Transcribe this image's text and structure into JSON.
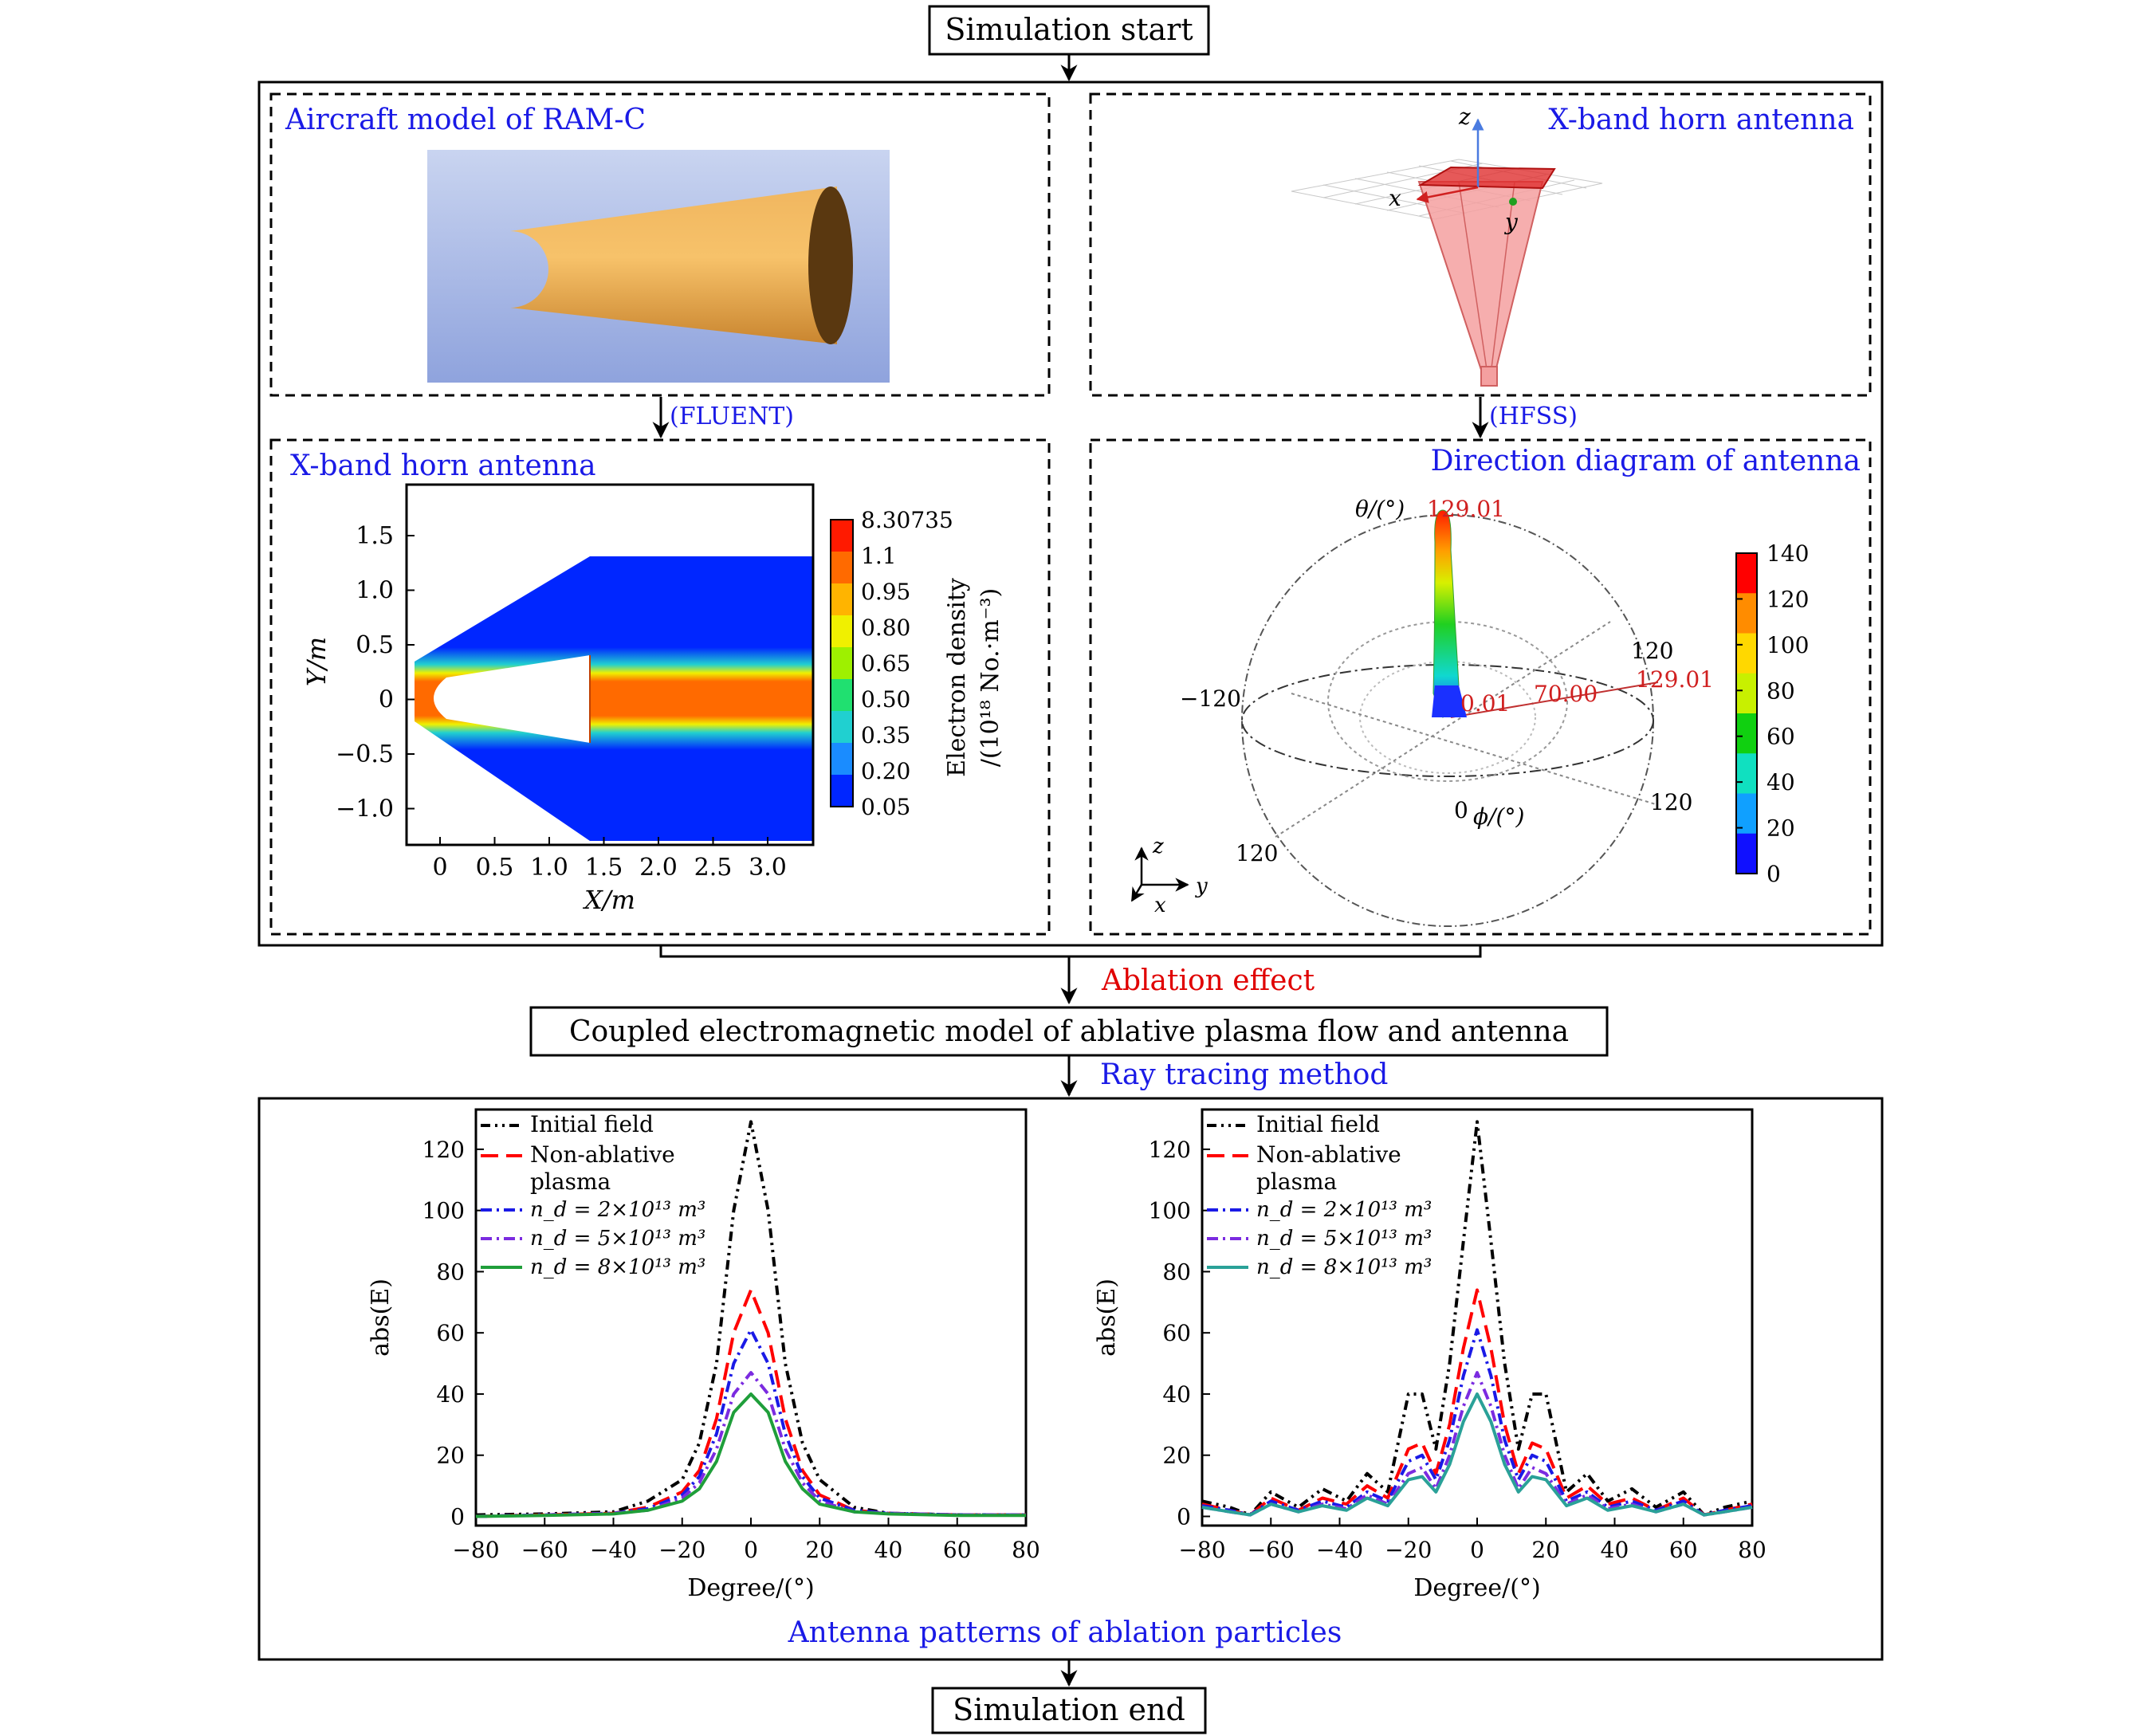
{
  "flow": {
    "start": "Simulation start",
    "end": "Simulation end",
    "ablation_effect": "Ablation effect",
    "coupled_model": "Coupled electromagnetic model of ablative plasma flow and antenna",
    "ray_tracing": "Ray tracing method",
    "fluent": "(FLUENT)",
    "hfss": "(HFSS)"
  },
  "panels": {
    "aircraft_title": "Aircraft model of RAM-C",
    "horn_title": "X-band horn antenna",
    "flow_title": "X-band horn antenna",
    "direction_title": "Direction diagram of antenna",
    "patterns_title": "Antenna patterns of ablation particles"
  },
  "horn_axes": {
    "x": "x",
    "y": "y",
    "z": "z"
  },
  "colors": {
    "blue_text": "#1a1ae6",
    "red_text": "#e00000",
    "black": "#000000",
    "initial": "#000000",
    "non_ablative": "#ff0000",
    "nd2": "#1a1ae6",
    "nd5": "#7b2be0",
    "nd8": "#1f9e3a",
    "nd8_right_alt": "#2aa198"
  },
  "flow_plot": {
    "xlabel": "X/m",
    "ylabel": "Y/m",
    "xticks": [
      "0",
      "0.5",
      "1.0",
      "1.5",
      "2.0",
      "2.5",
      "3.0"
    ],
    "yticks": [
      "1.5",
      "1.0",
      "0.5",
      "0",
      "−0.5",
      "−1.0"
    ],
    "colorbar_title_1": "Electron density",
    "colorbar_title_2": "/(10¹⁸ No.·m⁻³)",
    "colorbar_levels": [
      "8.30735",
      "1.1",
      "0.95",
      "0.80",
      "0.65",
      "0.50",
      "0.35",
      "0.20",
      "0.05"
    ],
    "colorbar_colors": [
      "#ff1a00",
      "#ff6a00",
      "#ffb400",
      "#f0f000",
      "#9ef000",
      "#20e070",
      "#20d0d0",
      "#1a8cff",
      "#0026ff"
    ]
  },
  "direction_plot": {
    "theta_label": "θ/(°)",
    "phi_label": "ϕ/(°)",
    "peak_label": "129.01",
    "right_label": "129.01",
    "mid_label": "70.00",
    "center_label": "0.01",
    "zero_label": "0",
    "left_label": "−120",
    "right_120": "120",
    "low_right_120": "120",
    "low_left_120": "120",
    "colorbar_ticks": [
      "140",
      "120",
      "100",
      "80",
      "60",
      "40",
      "20",
      "0"
    ],
    "colorbar_colors": [
      "#ff0000",
      "#ff8c00",
      "#ffd800",
      "#c8f000",
      "#10d010",
      "#10e0c0",
      "#10a0ff",
      "#1010ff"
    ]
  },
  "chart_data": [
    {
      "type": "line",
      "xlabel": "Degree/(°)",
      "ylabel": "abs(E)",
      "xlim": [
        -80,
        80
      ],
      "ylim": [
        -3,
        133
      ],
      "xticks": [
        "−80",
        "−60",
        "−40",
        "−20",
        "0",
        "20",
        "40",
        "60",
        "80"
      ],
      "yticks": [
        "0",
        "20",
        "40",
        "60",
        "80",
        "100",
        "120"
      ],
      "legend_position": "top-left",
      "series": [
        {
          "name": "Initial field",
          "x": [
            -80,
            -60,
            -40,
            -30,
            -20,
            -15,
            -10,
            -5,
            0,
            5,
            10,
            15,
            20,
            30,
            40,
            60,
            80
          ],
          "y": [
            0.5,
            0.8,
            1.5,
            5,
            12,
            24,
            50,
            100,
            129,
            100,
            50,
            24,
            12,
            3,
            1,
            0.5,
            0.5
          ]
        },
        {
          "name": "Non-ablative plasma",
          "x": [
            -80,
            -60,
            -40,
            -30,
            -20,
            -15,
            -10,
            -5,
            0,
            5,
            10,
            15,
            20,
            30,
            40,
            60,
            80
          ],
          "y": [
            0,
            0.5,
            1,
            3,
            8,
            15,
            32,
            60,
            74,
            60,
            32,
            15,
            7,
            2,
            1,
            0.5,
            0.5
          ]
        },
        {
          "name": "n_d = 2×10¹³ m³",
          "x": [
            -80,
            -60,
            -40,
            -30,
            -20,
            -15,
            -10,
            -5,
            0,
            5,
            10,
            15,
            20,
            30,
            40,
            60,
            80
          ],
          "y": [
            0,
            0.5,
            1,
            2.5,
            7,
            13,
            27,
            50,
            61,
            50,
            27,
            13,
            6,
            2,
            1,
            0.5,
            0.5
          ]
        },
        {
          "name": "n_d = 5×10¹³ m³",
          "x": [
            -80,
            -60,
            -40,
            -30,
            -20,
            -15,
            -10,
            -5,
            0,
            5,
            10,
            15,
            20,
            30,
            40,
            60,
            80
          ],
          "y": [
            0,
            0.5,
            1,
            2,
            6,
            11,
            22,
            40,
            47,
            40,
            22,
            11,
            5,
            1.5,
            1,
            0.5,
            0.5
          ]
        },
        {
          "name": "n_d = 8×10¹³ m³",
          "x": [
            -80,
            -60,
            -40,
            -30,
            -20,
            -15,
            -10,
            -5,
            0,
            5,
            10,
            15,
            20,
            30,
            40,
            60,
            80
          ],
          "y": [
            0,
            0.3,
            0.8,
            2,
            5,
            9,
            18,
            34,
            40,
            34,
            18,
            9,
            4,
            1.5,
            0.8,
            0.3,
            0.3
          ]
        }
      ]
    },
    {
      "type": "line",
      "xlabel": "Degree/(°)",
      "ylabel": "abs(E)",
      "xlim": [
        -80,
        80
      ],
      "ylim": [
        -3,
        133
      ],
      "xticks": [
        "−80",
        "−60",
        "−40",
        "−20",
        "0",
        "20",
        "40",
        "60",
        "80"
      ],
      "yticks": [
        "0",
        "20",
        "40",
        "60",
        "80",
        "100",
        "120"
      ],
      "legend_position": "top-left",
      "series": [
        {
          "name": "Initial field",
          "x": [
            -80,
            -72,
            -66,
            -60,
            -52,
            -45,
            -38,
            -32,
            -26,
            -20,
            -16,
            -12,
            -8,
            -4,
            0,
            4,
            8,
            12,
            16,
            20,
            26,
            32,
            38,
            45,
            52,
            60,
            66,
            72,
            80
          ],
          "y": [
            5,
            3,
            0.5,
            8,
            3,
            9,
            5,
            14,
            8,
            40,
            40,
            22,
            50,
            90,
            129,
            90,
            50,
            22,
            40,
            40,
            8,
            14,
            5,
            9,
            3,
            8,
            0.5,
            3,
            5
          ]
        },
        {
          "name": "Non-ablative plasma",
          "x": [
            -80,
            -72,
            -66,
            -60,
            -52,
            -45,
            -38,
            -32,
            -26,
            -20,
            -16,
            -12,
            -8,
            -4,
            0,
            4,
            8,
            12,
            16,
            20,
            26,
            32,
            38,
            45,
            52,
            60,
            66,
            72,
            80
          ],
          "y": [
            4,
            2,
            0.5,
            6,
            2,
            6,
            4,
            10,
            6,
            22,
            24,
            14,
            30,
            55,
            74,
            55,
            30,
            14,
            24,
            22,
            6,
            10,
            4,
            6,
            2,
            6,
            0.5,
            2,
            4
          ]
        },
        {
          "name": "n_d = 2×10¹³ m³",
          "x": [
            -80,
            -72,
            -66,
            -60,
            -52,
            -45,
            -38,
            -32,
            -26,
            -20,
            -16,
            -12,
            -8,
            -4,
            0,
            4,
            8,
            12,
            16,
            20,
            26,
            32,
            38,
            45,
            52,
            60,
            66,
            72,
            80
          ],
          "y": [
            3.5,
            2,
            0.5,
            5,
            2,
            5,
            3,
            8,
            5,
            18,
            20,
            12,
            25,
            46,
            61,
            46,
            25,
            12,
            20,
            18,
            5,
            8,
            3,
            5,
            2,
            5,
            0.5,
            2,
            3.5
          ]
        },
        {
          "name": "n_d = 5×10¹³ m³",
          "x": [
            -80,
            -72,
            -66,
            -60,
            -52,
            -45,
            -38,
            -32,
            -26,
            -20,
            -16,
            -12,
            -8,
            -4,
            0,
            4,
            8,
            12,
            16,
            20,
            26,
            32,
            38,
            45,
            52,
            60,
            66,
            72,
            80
          ],
          "y": [
            3,
            1.5,
            0.5,
            4,
            1.5,
            4,
            2.5,
            7,
            4,
            14,
            16,
            9,
            20,
            36,
            47,
            36,
            20,
            9,
            16,
            14,
            4,
            7,
            2.5,
            4,
            1.5,
            4,
            0.5,
            1.5,
            3
          ]
        },
        {
          "name": "n_d = 8×10¹³ m³",
          "x": [
            -80,
            -72,
            -66,
            -60,
            -52,
            -45,
            -38,
            -32,
            -26,
            -20,
            -16,
            -12,
            -8,
            -4,
            0,
            4,
            8,
            12,
            16,
            20,
            26,
            32,
            38,
            45,
            52,
            60,
            66,
            72,
            80
          ],
          "y": [
            3,
            1.5,
            0.5,
            4,
            1.5,
            3.5,
            2,
            6,
            3.5,
            12,
            13,
            8,
            17,
            31,
            40,
            31,
            17,
            8,
            13,
            12,
            3.5,
            6,
            2,
            3.5,
            1.5,
            4,
            0.5,
            1.5,
            3
          ]
        }
      ]
    }
  ]
}
